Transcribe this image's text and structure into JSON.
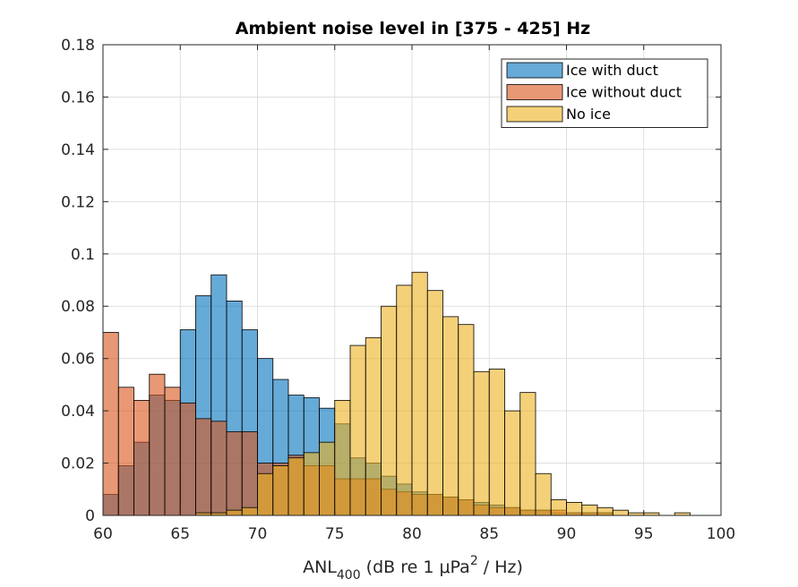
{
  "chart_data": {
    "type": "bar",
    "title": "Ambient noise level in [375 - 425] Hz",
    "xlabel": {
      "main": "ANL",
      "sub": "400",
      "rest_before_sup": " (dB re 1 μPa",
      "sup": "2",
      "rest_after_sup": " / Hz)"
    },
    "ylabel": "",
    "xlim": [
      60,
      100
    ],
    "ylim": [
      0,
      0.18
    ],
    "xticks": [
      60,
      65,
      70,
      75,
      80,
      85,
      90,
      95,
      100
    ],
    "xtick_labels": [
      "60",
      "65",
      "70",
      "75",
      "80",
      "85",
      "90",
      "95",
      "100"
    ],
    "yticks": [
      0,
      0.02,
      0.04,
      0.06,
      0.08,
      0.1,
      0.12,
      0.14,
      0.16,
      0.18
    ],
    "ytick_labels": [
      "0",
      "0.02",
      "0.04",
      "0.06",
      "0.08",
      "0.1",
      "0.12",
      "0.14",
      "0.16",
      "0.18"
    ],
    "grid": true,
    "legend_position": "top-right",
    "bin_start": 60,
    "bin_width": 1,
    "series": [
      {
        "name": "Ice with duct",
        "color": "#0072BD",
        "values": [
          0.008,
          0.019,
          0.028,
          0.046,
          0.044,
          0.071,
          0.084,
          0.092,
          0.082,
          0.071,
          0.06,
          0.052,
          0.046,
          0.045,
          0.041,
          0.035,
          0.022,
          0.02,
          0.015,
          0.012,
          0.009,
          0.008,
          0.007,
          0.006,
          0.005,
          0.004,
          0.003,
          0.002,
          0.002,
          0.001,
          0.001,
          0.001,
          0.001,
          0.0,
          0.0,
          0.0,
          0.0,
          0.0,
          0.0,
          0.0
        ]
      },
      {
        "name": "Ice without duct",
        "color": "#D95319",
        "values": [
          0.07,
          0.049,
          0.044,
          0.054,
          0.049,
          0.043,
          0.037,
          0.036,
          0.032,
          0.032,
          0.02,
          0.02,
          0.023,
          0.019,
          0.019,
          0.014,
          0.014,
          0.014,
          0.01,
          0.009,
          0.008,
          0.008,
          0.007,
          0.006,
          0.004,
          0.003,
          0.003,
          0.002,
          0.002,
          0.002,
          0.001,
          0.001,
          0.001,
          0.0,
          0.0,
          0.0,
          0.0,
          0.0,
          0.0,
          0.0
        ]
      },
      {
        "name": "No ice",
        "color": "#EDB120",
        "values": [
          0.0,
          0.0,
          0.0,
          0.0,
          0.0,
          0.0,
          0.001,
          0.001,
          0.002,
          0.003,
          0.016,
          0.019,
          0.022,
          0.024,
          0.028,
          0.044,
          0.065,
          0.068,
          0.08,
          0.088,
          0.093,
          0.086,
          0.076,
          0.073,
          0.055,
          0.056,
          0.04,
          0.047,
          0.016,
          0.006,
          0.005,
          0.004,
          0.003,
          0.002,
          0.001,
          0.001,
          0.0,
          0.001,
          0.0,
          0.0
        ]
      }
    ]
  }
}
